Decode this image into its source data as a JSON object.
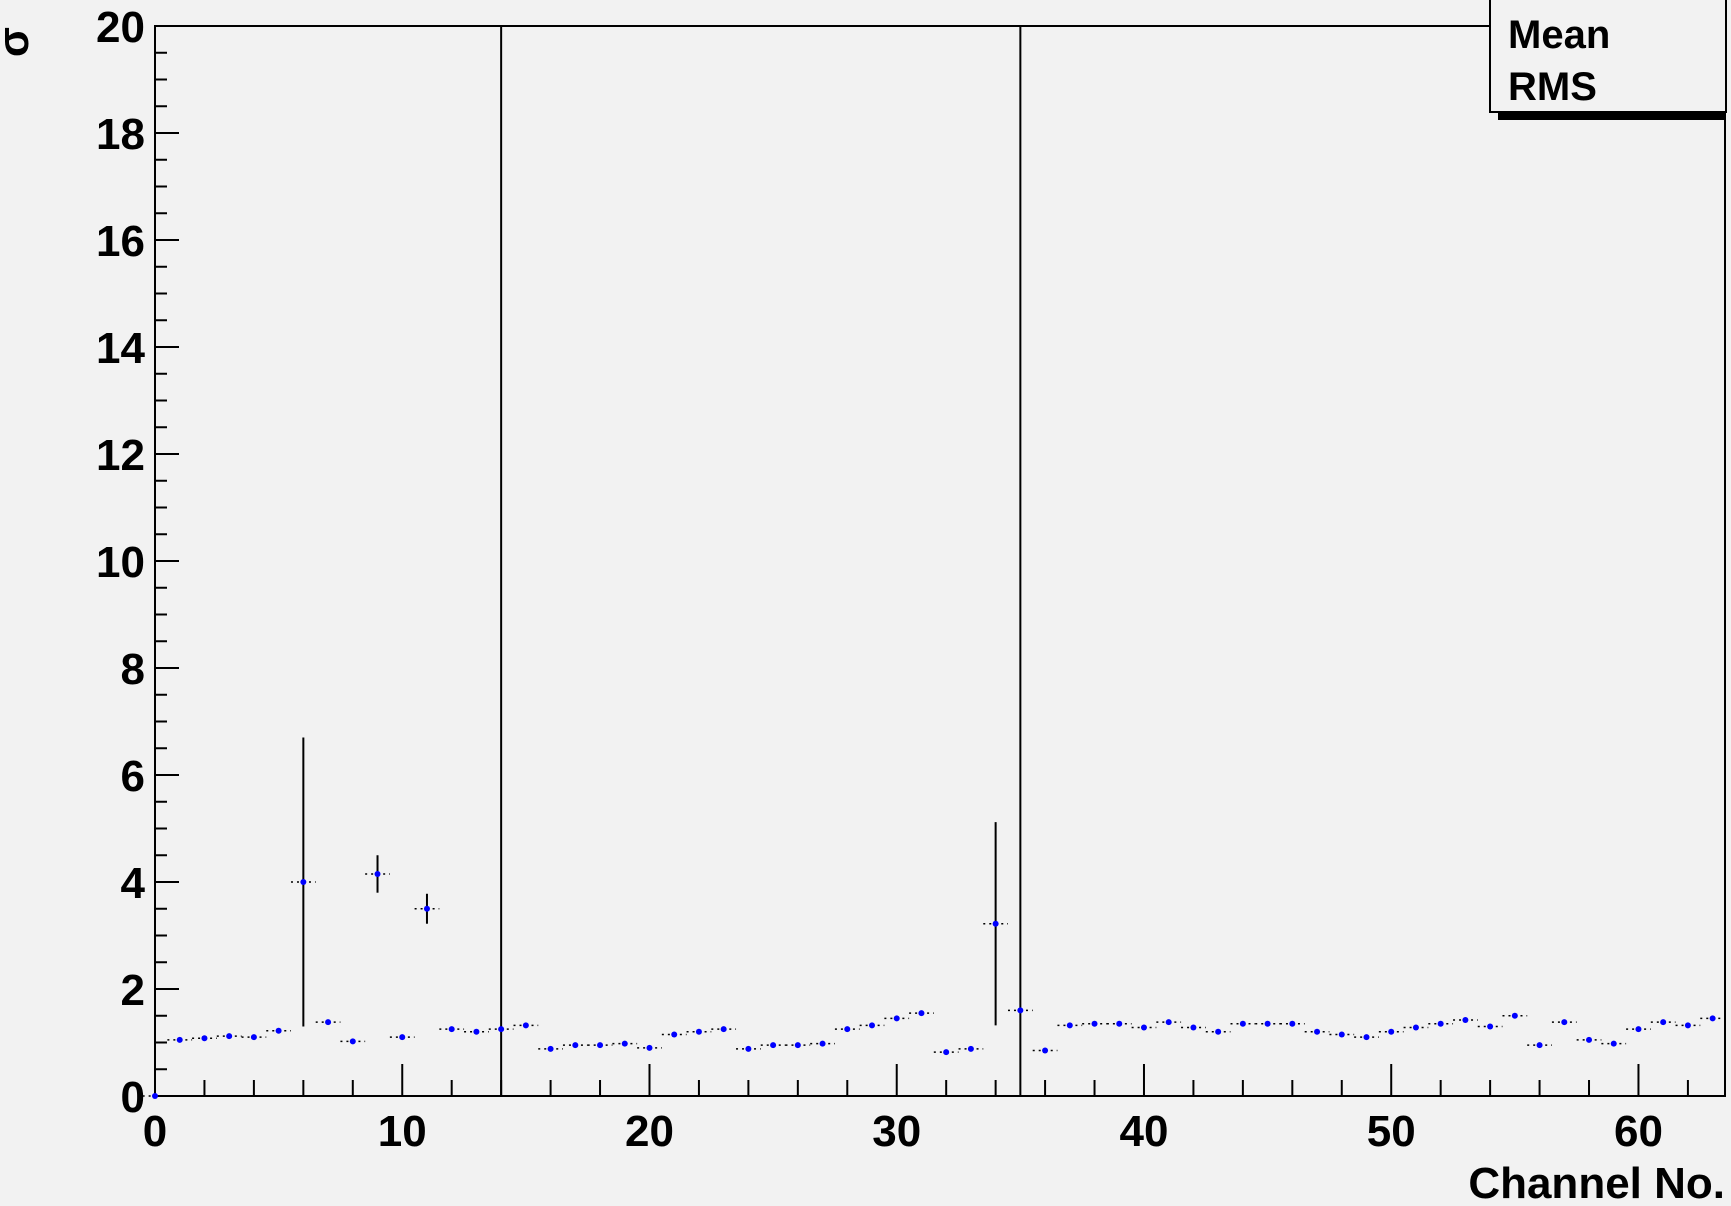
{
  "chart_data": {
    "type": "scatter",
    "title": "",
    "xlabel": "Channel No.",
    "ylabel": "σ",
    "xlim": [
      0,
      63.5
    ],
    "ylim": [
      0,
      20
    ],
    "x_major_ticks": [
      0,
      10,
      20,
      30,
      40,
      50,
      60
    ],
    "y_major_ticks": [
      0,
      2,
      4,
      6,
      8,
      10,
      12,
      14,
      16,
      18,
      20
    ],
    "legend": {
      "placement": "top-right",
      "entries": [
        "Mean",
        "RMS"
      ]
    },
    "grid": false,
    "point_color": "#0000ff",
    "series": [
      {
        "x": [
          0,
          1,
          2,
          3,
          4,
          5,
          6,
          7,
          8,
          9,
          10,
          11,
          12,
          13,
          14,
          15,
          16,
          17,
          18,
          19,
          20,
          21,
          22,
          23,
          24,
          25,
          26,
          27,
          28,
          29,
          30,
          31,
          32,
          33,
          34,
          35,
          36,
          37,
          38,
          39,
          40,
          41,
          42,
          43,
          44,
          45,
          46,
          47,
          48,
          49,
          50,
          51,
          52,
          53,
          54,
          55,
          56,
          57,
          58,
          59,
          60,
          61,
          62,
          63
        ],
        "y": [
          0,
          1.05,
          1.08,
          1.12,
          1.1,
          1.22,
          4.0,
          1.38,
          1.02,
          4.15,
          1.1,
          3.5,
          1.25,
          1.2,
          1.25,
          1.32,
          0.88,
          0.95,
          0.95,
          0.98,
          0.9,
          1.15,
          1.2,
          1.25,
          0.88,
          0.95,
          0.95,
          0.98,
          1.25,
          1.32,
          1.45,
          1.55,
          0.82,
          0.88,
          3.22,
          1.6,
          0.85,
          1.32,
          1.35,
          1.35,
          1.28,
          1.38,
          1.28,
          1.2,
          1.35,
          1.35,
          1.35,
          1.2,
          1.15,
          1.1,
          1.2,
          1.28,
          1.35,
          1.42,
          1.3,
          1.5,
          0.95,
          1.38,
          1.05,
          0.98,
          1.25,
          1.38,
          1.32,
          1.45
        ],
        "y_error": [
          13.7,
          0,
          0,
          0,
          0,
          0,
          2.7,
          0,
          0,
          0.35,
          0,
          0.28,
          0,
          0,
          20,
          0,
          0,
          0,
          0,
          0,
          0,
          0,
          0,
          0,
          0,
          0,
          0,
          0,
          0,
          0,
          0,
          0,
          0,
          0,
          1.9,
          20,
          0,
          0,
          0,
          0,
          0,
          0,
          0,
          0,
          0,
          0,
          0,
          0,
          0,
          0,
          0,
          0,
          0,
          0,
          0,
          0,
          0,
          0,
          0,
          0,
          0,
          0,
          0,
          0
        ]
      }
    ]
  }
}
